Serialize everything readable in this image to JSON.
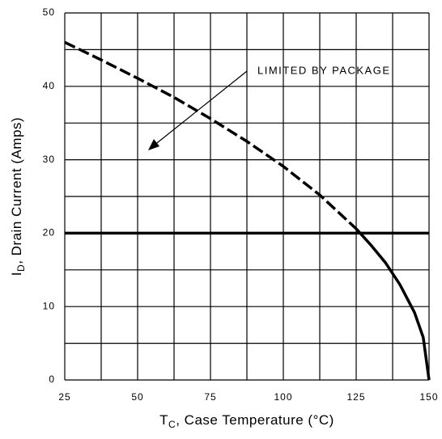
{
  "chart_data": {
    "type": "line",
    "xlabel": {
      "main": "T",
      "sub": "C",
      "rest": ", Case Temperature (°C)"
    },
    "ylabel": {
      "main": "I",
      "sub": "D",
      "rest": ", Drain Current (Amps)"
    },
    "annotation": "LIMITED BY PACKAGE",
    "series": [
      {
        "color": "#000000",
        "dash": true,
        "x": [
          25,
          37.5,
          50,
          62.5,
          75,
          87.5,
          100,
          112.5,
          125
        ],
        "values": [
          46,
          43.6,
          41.1,
          38.5,
          35.6,
          32.5,
          29.1,
          25.2,
          20.6
        ]
      },
      {
        "color": "#000000",
        "dash": false,
        "x": [
          125,
          130,
          135,
          140,
          145,
          148,
          150
        ],
        "values": [
          20.6,
          18.4,
          16,
          13,
          9.2,
          5.8,
          0
        ]
      },
      {
        "color": "#000000",
        "dash": false,
        "x": [
          25,
          150
        ],
        "values": [
          20,
          20
        ]
      }
    ],
    "xlim": [
      25,
      150
    ],
    "xticks": [
      25,
      50,
      75,
      100,
      125,
      150
    ],
    "xminor": [
      37.5,
      62.5,
      87.5,
      112.5,
      137.5
    ],
    "ylim": [
      0,
      50
    ],
    "yticks": [
      0,
      10,
      20,
      30,
      40,
      50
    ],
    "yminor": [
      5,
      15,
      25,
      35,
      45
    ],
    "grid": true
  }
}
